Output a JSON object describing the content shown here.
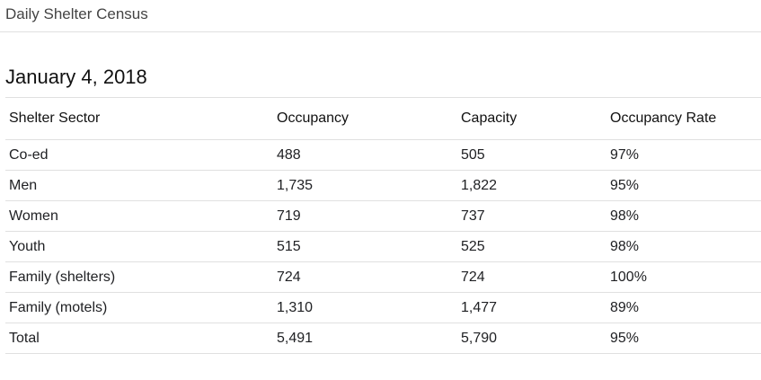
{
  "header": {
    "title": "Daily Shelter Census"
  },
  "main": {
    "date": "January 4, 2018"
  },
  "table": {
    "columns": [
      "Shelter Sector",
      "Occupancy",
      "Capacity",
      "Occupancy Rate"
    ],
    "rows": [
      [
        "Co-ed",
        "488",
        "505",
        "97%"
      ],
      [
        "Men",
        "1,735",
        "1,822",
        "95%"
      ],
      [
        "Women",
        "719",
        "737",
        "98%"
      ],
      [
        "Youth",
        "515",
        "525",
        "98%"
      ],
      [
        "Family (shelters)",
        "724",
        "724",
        "100%"
      ],
      [
        "Family (motels)",
        "1,310",
        "1,477",
        "89%"
      ],
      [
        "Total",
        "5,491",
        "5,790",
        "95%"
      ]
    ]
  }
}
